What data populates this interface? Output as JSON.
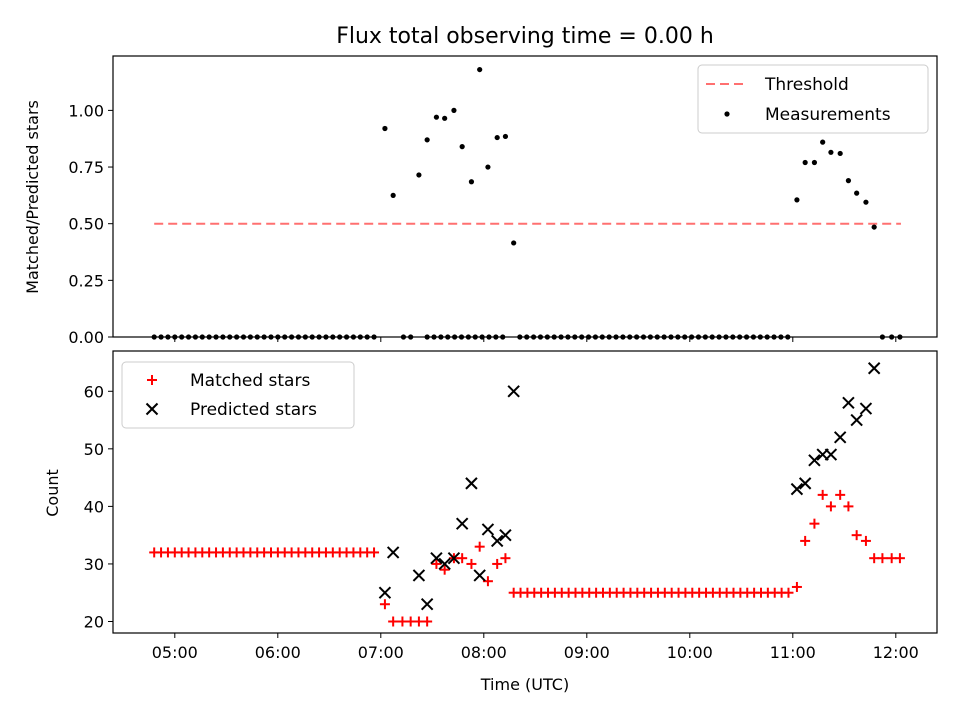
{
  "title": "Flux total observing time = 0.00 h",
  "top": {
    "ylabel": "Matched/Predicted stars",
    "ylim": [
      0,
      1.24
    ],
    "yticks": [
      0,
      0.25,
      0.5,
      0.75,
      1.0
    ],
    "yticklabels": [
      "0.00",
      "0.25",
      "0.50",
      "0.75",
      "1.00"
    ],
    "legend": {
      "threshold": "Threshold",
      "measurements": "Measurements",
      "placement": "upper right"
    },
    "threshold_color": "#ff7070",
    "measure_color": "#000000"
  },
  "bottom": {
    "ylabel": "Count",
    "xlabel": "Time (UTC)",
    "ylim": [
      18,
      67
    ],
    "yticks": [
      20,
      30,
      40,
      50,
      60
    ],
    "yticklabels": [
      "20",
      "30",
      "40",
      "50",
      "60"
    ],
    "legend": {
      "matched": "Matched stars",
      "predicted": "Predicted stars",
      "placement": "upper left"
    },
    "matched_color": "#ff0000",
    "predicted_color": "#000000"
  },
  "xaxis": {
    "xlim_hours": [
      4.4,
      12.4
    ],
    "ticks_hours": [
      5,
      6,
      7,
      8,
      9,
      10,
      11,
      12
    ],
    "ticklabels": [
      "05:00",
      "06:00",
      "07:00",
      "08:00",
      "09:00",
      "10:00",
      "11:00",
      "12:00"
    ]
  },
  "chart_data": {
    "type": "scatter",
    "title": "Flux total observing time = 0.00 h",
    "threshold": {
      "name": "Threshold",
      "value": 0.5,
      "x_range": [
        4.8,
        12.05
      ]
    },
    "ratio_segments": [
      {
        "start": 4.8,
        "end": 7.0,
        "step": 0.0667,
        "y": 0
      },
      {
        "start": 7.45,
        "end": 8.25,
        "step": 0.0667,
        "y": 0
      },
      {
        "start": 8.35,
        "end": 11.0,
        "step": 0.0667,
        "y": 0
      }
    ],
    "ratio_points": [
      [
        7.04,
        0.92
      ],
      [
        7.12,
        0.625
      ],
      [
        7.22,
        0.0
      ],
      [
        7.29,
        0.0
      ],
      [
        7.37,
        0.715
      ],
      [
        7.45,
        0.87
      ],
      [
        7.54,
        0.97
      ],
      [
        7.62,
        0.965
      ],
      [
        7.71,
        1.0
      ],
      [
        7.79,
        0.84
      ],
      [
        7.88,
        0.685
      ],
      [
        7.96,
        1.18
      ],
      [
        8.04,
        0.75
      ],
      [
        8.13,
        0.88
      ],
      [
        8.21,
        0.885
      ],
      [
        8.29,
        0.415
      ],
      [
        11.04,
        0.605
      ],
      [
        11.12,
        0.77
      ],
      [
        11.21,
        0.77
      ],
      [
        11.29,
        0.86
      ],
      [
        11.37,
        0.815
      ],
      [
        11.46,
        0.81
      ],
      [
        11.54,
        0.69
      ],
      [
        11.62,
        0.635
      ],
      [
        11.71,
        0.595
      ],
      [
        11.79,
        0.485
      ],
      [
        11.87,
        0.0
      ],
      [
        11.96,
        0.0
      ],
      [
        12.04,
        0.0
      ]
    ],
    "matched_segments": [
      {
        "start": 4.8,
        "end": 6.95,
        "step": 0.0667,
        "y": 32
      },
      {
        "start": 8.29,
        "end": 10.98,
        "step": 0.0667,
        "y": 25
      }
    ],
    "matched_points": [
      [
        7.04,
        23
      ],
      [
        7.12,
        20
      ],
      [
        7.21,
        20
      ],
      [
        7.29,
        20
      ],
      [
        7.37,
        20
      ],
      [
        7.45,
        20
      ],
      [
        7.54,
        30
      ],
      [
        7.62,
        29
      ],
      [
        7.71,
        31
      ],
      [
        7.79,
        31
      ],
      [
        7.88,
        30
      ],
      [
        7.96,
        33
      ],
      [
        8.04,
        27
      ],
      [
        8.13,
        30
      ],
      [
        8.21,
        31
      ],
      [
        11.04,
        26
      ],
      [
        11.12,
        34
      ],
      [
        11.21,
        37
      ],
      [
        11.29,
        42
      ],
      [
        11.37,
        40
      ],
      [
        11.46,
        42
      ],
      [
        11.54,
        40
      ],
      [
        11.62,
        35
      ],
      [
        11.71,
        34
      ],
      [
        11.79,
        31
      ],
      [
        11.87,
        31
      ],
      [
        11.96,
        31
      ],
      [
        12.04,
        31
      ]
    ],
    "predicted_points": [
      [
        7.04,
        25
      ],
      [
        7.12,
        32
      ],
      [
        7.37,
        28
      ],
      [
        7.45,
        23
      ],
      [
        7.54,
        31
      ],
      [
        7.62,
        30
      ],
      [
        7.71,
        31
      ],
      [
        7.79,
        37
      ],
      [
        7.88,
        44
      ],
      [
        7.96,
        28
      ],
      [
        8.04,
        36
      ],
      [
        8.13,
        34
      ],
      [
        8.21,
        35
      ],
      [
        8.29,
        60
      ],
      [
        11.04,
        43
      ],
      [
        11.12,
        44
      ],
      [
        11.21,
        48
      ],
      [
        11.29,
        49
      ],
      [
        11.37,
        49
      ],
      [
        11.46,
        52
      ],
      [
        11.54,
        58
      ],
      [
        11.62,
        55
      ],
      [
        11.71,
        57
      ],
      [
        11.79,
        64
      ]
    ]
  }
}
